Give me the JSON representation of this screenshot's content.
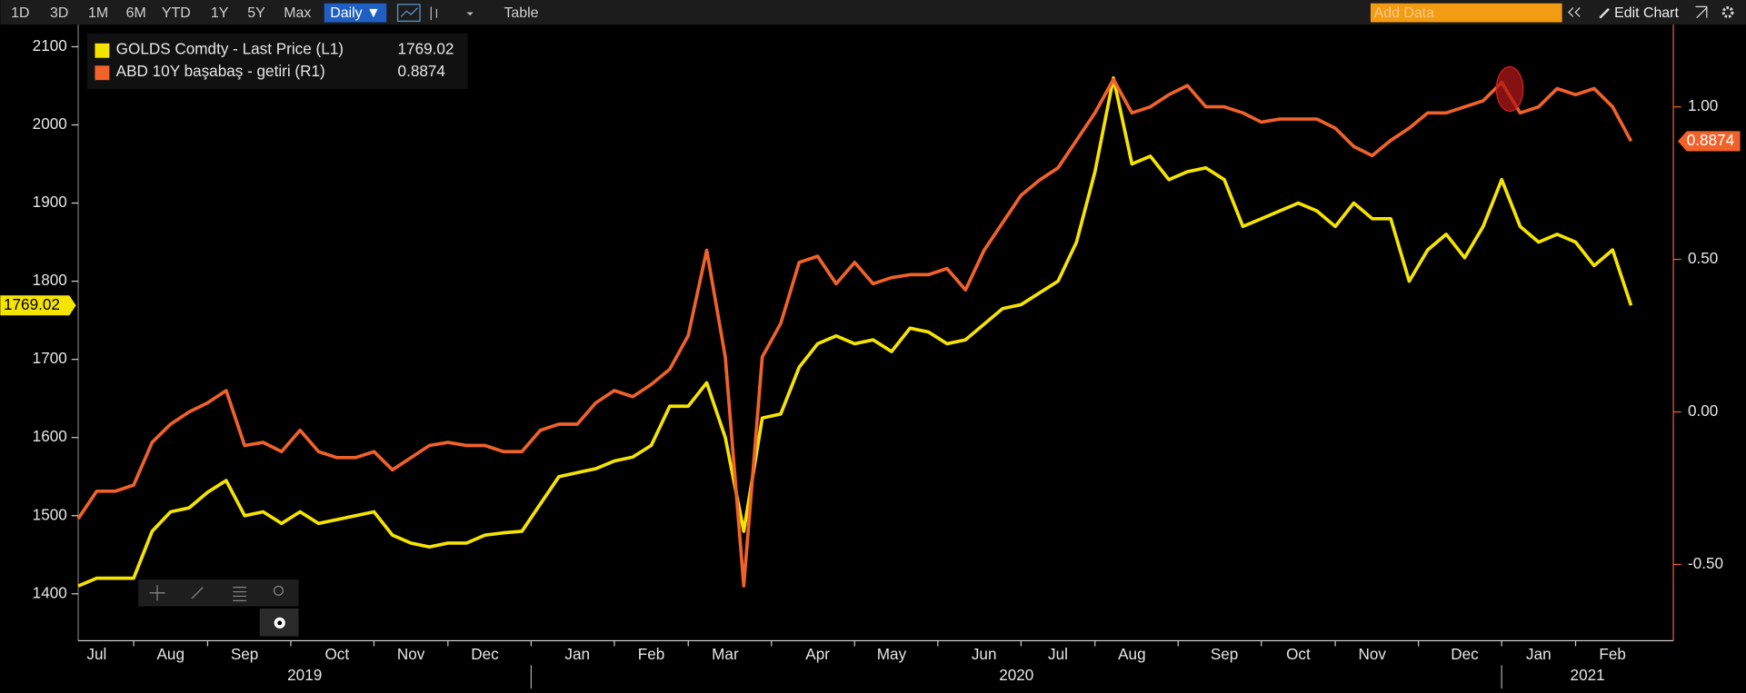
{
  "toolbar": {
    "ranges": [
      "1D",
      "3D",
      "1M",
      "6M",
      "YTD",
      "1Y",
      "5Y",
      "Max"
    ],
    "frequency": "Daily ▼",
    "table": "Table",
    "add_data": "Add Data",
    "edit_chart": "Edit Chart"
  },
  "chart_data": {
    "type": "line",
    "categories": [
      null,
      "Jul",
      null,
      null,
      null,
      "Aug",
      null,
      null,
      null,
      "Sep",
      null,
      null,
      null,
      null,
      "Oct",
      null,
      null,
      null,
      "Nov",
      null,
      null,
      null,
      "Dec",
      null,
      null,
      null,
      null,
      "Jan",
      null,
      null,
      null,
      "Feb",
      null,
      null,
      null,
      "Mar",
      null,
      null,
      null,
      null,
      "Apr",
      null,
      null,
      null,
      "May",
      null,
      null,
      null,
      null,
      "Jun",
      null,
      null,
      null,
      "Jul",
      null,
      null,
      null,
      "Aug",
      null,
      null,
      null,
      null,
      "Sep",
      null,
      null,
      null,
      "Oct",
      null,
      null,
      null,
      "Nov",
      null,
      null,
      null,
      null,
      "Dec",
      null,
      null,
      null,
      "Jan",
      null,
      null,
      null,
      "Feb",
      null
    ],
    "x_years": [
      "2019",
      "2020",
      "2021"
    ],
    "ylim": [
      1340,
      2128.5
    ],
    "yticks": [
      1400,
      1500,
      1600,
      1700,
      1800,
      1900,
      2000,
      2100
    ],
    "y2lim": [
      -0.75,
      1.27
    ],
    "y2ticks": [
      {
        "value": -0.5,
        "label": "-0.50"
      },
      {
        "value": 0,
        "label": "0.00"
      },
      {
        "value": 0.5,
        "label": "0.50"
      },
      {
        "value": 1,
        "label": "1.00"
      }
    ],
    "grid": false,
    "legend": "top-left",
    "series": [
      {
        "name": "GOLDS Comdty - Last Price (L1)",
        "color": "#f5e400",
        "axis": "y",
        "last_label": "1769.02",
        "values": [
          1410,
          1420,
          1420,
          1420,
          1480,
          1505,
          1510,
          1530,
          1545,
          1500,
          1505,
          1490,
          1505,
          1490,
          1495,
          1500,
          1505,
          1475,
          1465,
          1460,
          1465,
          1465,
          1475,
          1478,
          1480,
          1515,
          1550,
          1555,
          1560,
          1570,
          1575,
          1590,
          1640,
          1640,
          1670,
          1600,
          1480,
          1625,
          1630,
          1690,
          1720,
          1730,
          1720,
          1725,
          1710,
          1740,
          1735,
          1720,
          1725,
          1745,
          1765,
          1770,
          1785,
          1800,
          1850,
          1940,
          2060,
          1950,
          1960,
          1930,
          1940,
          1945,
          1930,
          1870,
          1880,
          1890,
          1900,
          1890,
          1870,
          1900,
          1880,
          1880,
          1800,
          1840,
          1860,
          1830,
          1870,
          1930,
          1870,
          1850,
          1860,
          1850,
          1820,
          1840,
          1769.02
        ]
      },
      {
        "name": "ABD 10Y başabaş - getiri (R1)",
        "color": "#f0622a",
        "axis": "y2",
        "last_label": "0.8874",
        "values": [
          -0.35,
          -0.26,
          -0.26,
          -0.24,
          -0.1,
          -0.04,
          0,
          0.03,
          0.07,
          -0.11,
          -0.1,
          -0.13,
          -0.06,
          -0.13,
          -0.15,
          -0.15,
          -0.13,
          -0.19,
          -0.15,
          -0.11,
          -0.1,
          -0.11,
          -0.11,
          -0.13,
          -0.13,
          -0.06,
          -0.04,
          -0.04,
          0.03,
          0.07,
          0.05,
          0.09,
          0.14,
          0.25,
          0.53,
          0.18,
          -0.57,
          0.18,
          0.29,
          0.49,
          0.51,
          0.42,
          0.49,
          0.42,
          0.44,
          0.45,
          0.45,
          0.47,
          0.4,
          0.53,
          0.62,
          0.71,
          0.76,
          0.8,
          0.89,
          0.98,
          1.09,
          0.98,
          1,
          1.04,
          1.07,
          1,
          1,
          0.98,
          0.95,
          0.96,
          0.96,
          0.96,
          0.93,
          0.87,
          0.84,
          0.89,
          0.93,
          0.98,
          0.98,
          1,
          1.02,
          1.08,
          0.98,
          1,
          1.06,
          1.04,
          1.06,
          1,
          0.8874
        ]
      }
    ]
  }
}
